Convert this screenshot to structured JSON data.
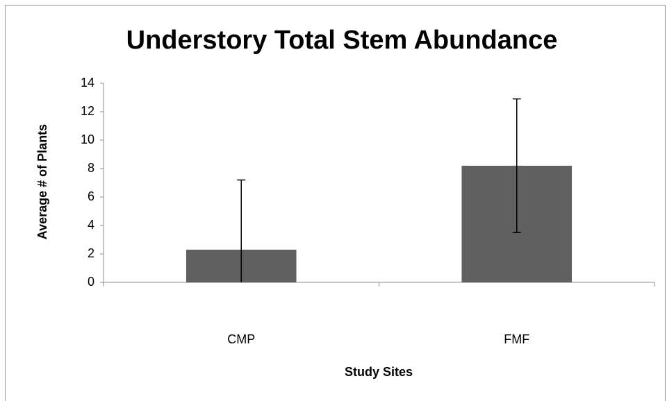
{
  "chart_data": {
    "type": "bar",
    "title": "Understory Total Stem Abundance",
    "x_label": "Study Sites",
    "y_label": "Average # of Plants",
    "categories": [
      "CMP",
      "FMF"
    ],
    "values": [
      2.3,
      8.2
    ],
    "errors": [
      4.9,
      4.7
    ],
    "color": "#606060",
    "ylim": [
      0,
      14
    ],
    "yticks": [
      0,
      2,
      4,
      6,
      8,
      10,
      12,
      14
    ],
    "grid": false
  }
}
